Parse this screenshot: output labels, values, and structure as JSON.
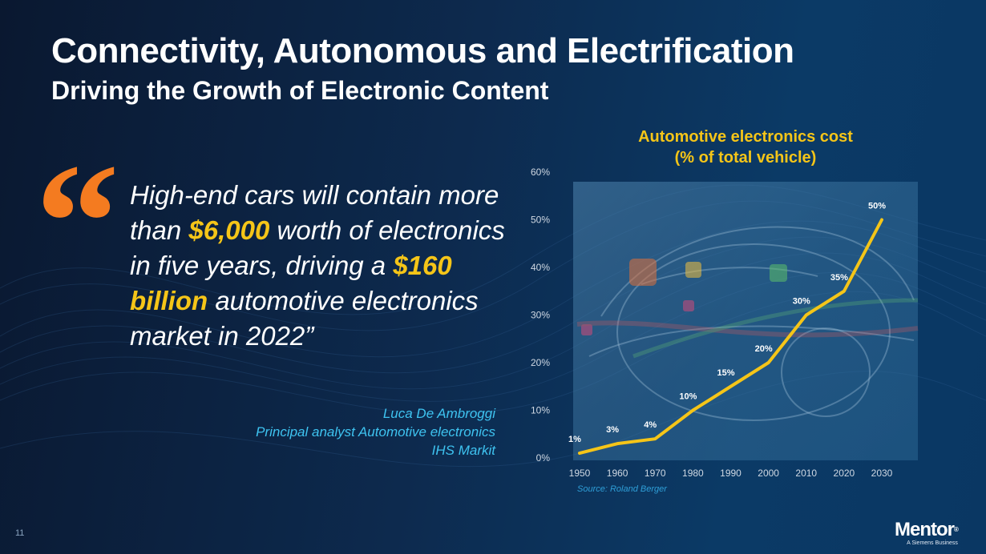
{
  "slide": {
    "title": "Connectivity, Autonomous and Electrification",
    "subtitle": "Driving the Growth of Electronic Content",
    "page_number": "11"
  },
  "quote": {
    "mark": "“",
    "part1": "High-end cars will contain more than ",
    "highlight1": "$6,000",
    "part2": " worth of electronics in five years, driving a ",
    "highlight2": "$160 billion",
    "part3": " automotive electronics market in 2022”",
    "highlight_color": "#f5c518",
    "mark_color": "#f47b20"
  },
  "attribution": {
    "name": "Luca De Ambroggi",
    "role": "Principal analyst Automotive electronics",
    "org": "IHS Markit",
    "color": "#3ec3f0"
  },
  "chart_data": {
    "type": "line",
    "title": "Automotive electronics cost (% of total vehicle)",
    "title_line1": "Automotive electronics cost",
    "title_line2": "(% of total vehicle)",
    "x": [
      1950,
      1960,
      1970,
      1980,
      1990,
      2000,
      2010,
      2020,
      2030
    ],
    "y": [
      1,
      3,
      4,
      10,
      15,
      20,
      30,
      35,
      50
    ],
    "data_labels": [
      "1%",
      "3%",
      "4%",
      "10%",
      "15%",
      "20%",
      "30%",
      "35%",
      "50%"
    ],
    "yticks": [
      "0%",
      "10%",
      "20%",
      "30%",
      "40%",
      "50%",
      "60%"
    ],
    "ylim": [
      0,
      60
    ],
    "xlabel": "",
    "ylabel": "",
    "grid": false,
    "line_color": "#f5c518",
    "source": "Source: Roland Berger"
  },
  "logo": {
    "text": "Mentor",
    "reg": "®",
    "tagline": "A Siemens Business"
  }
}
